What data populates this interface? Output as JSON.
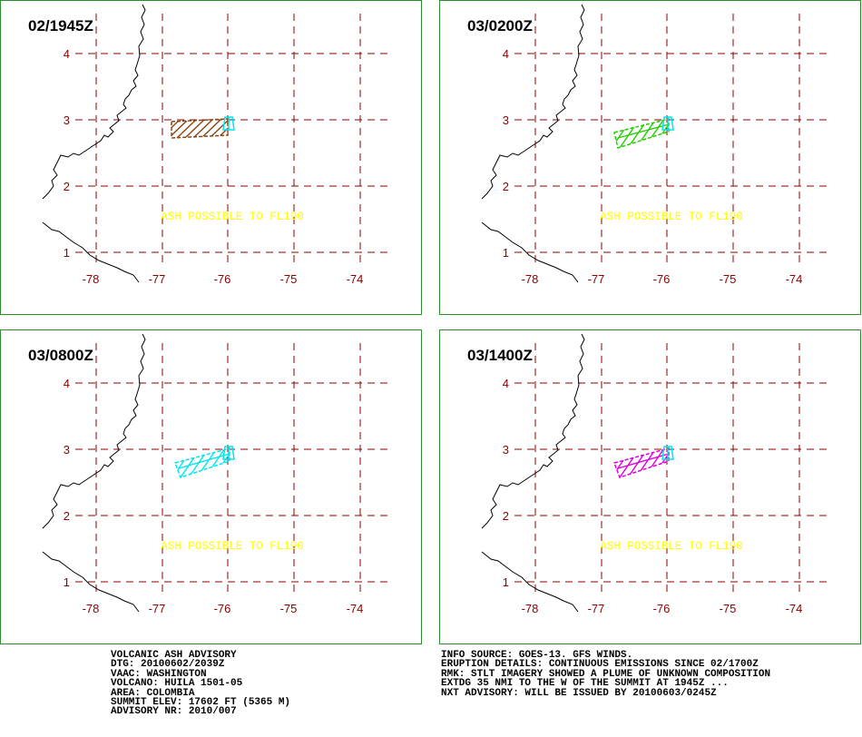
{
  "panels": [
    {
      "time": "02/1945Z",
      "plume_color": "#8b4513",
      "plume_shape": "bar"
    },
    {
      "time": "03/0200Z",
      "plume_color": "#22cc00",
      "plume_shape": "wedge"
    },
    {
      "time": "03/0800Z",
      "plume_color": "#00e5ee",
      "plume_shape": "wedge"
    },
    {
      "time": "03/1400Z",
      "plume_color": "#dd00dd",
      "plume_shape": "wedge"
    }
  ],
  "map": {
    "lat_labels": [
      "4",
      "3",
      "2",
      "1"
    ],
    "lon_labels": [
      "-78",
      "-77",
      "-76",
      "-75",
      "-74"
    ],
    "annotation": "ASH POSSIBLE TO FL190",
    "grid_color": "#8b0000",
    "annotation_color": "#ffff00",
    "summit_color": "#00e5ee"
  },
  "advisory_left": [
    "VOLCANIC ASH ADVISORY",
    "DTG: 20100602/2039Z",
    "VAAC: WASHINGTON",
    "VOLCANO: HUILA 1501-05",
    "AREA: COLOMBIA",
    "SUMMIT ELEV: 17602 FT (5365 M)",
    "ADVISORY NR: 2010/007"
  ],
  "advisory_right": [
    "INFO SOURCE: GOES-13. GFS WINDS.",
    "ERUPTION DETAILS: CONTINUOUS EMISSIONS SINCE 02/1700Z",
    "RMK: STLT IMAGERY SHOWED A PLUME OF UNKNOWN COMPOSITION",
    "EXTDG 35 NMI TO THE W OF THE SUMMIT AT 1945Z ...",
    "NXT ADVISORY: WILL BE ISSUED BY 20100603/0245Z"
  ]
}
